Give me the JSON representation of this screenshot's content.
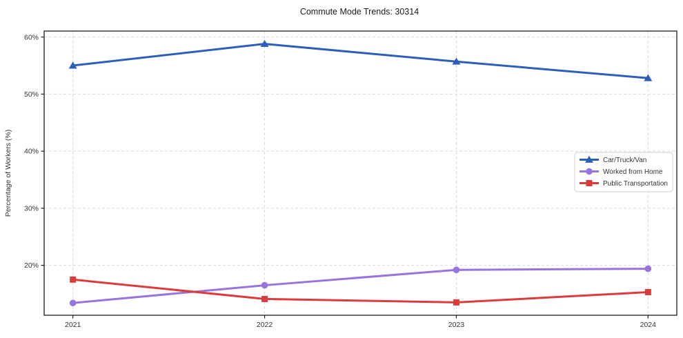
{
  "chart_data": {
    "type": "line",
    "title": "Commute Mode Trends: 30314",
    "xlabel": "",
    "ylabel": "Percentage of Workers (%)",
    "x": [
      2021,
      2022,
      2023,
      2024
    ],
    "x_tick_labels": [
      "2021",
      "2022",
      "2023",
      "2024"
    ],
    "y_ticks": [
      20,
      30,
      40,
      50,
      60
    ],
    "y_tick_labels": [
      "20%",
      "30%",
      "40%",
      "50%",
      "60%"
    ],
    "xlim": [
      2020.85,
      2024.15
    ],
    "ylim": [
      11.25,
      61.05
    ],
    "grid": true,
    "legend_position": "center-right",
    "colors": {
      "background": "#ffffff",
      "axis": "#1a1a1a",
      "grid": "#d9d9d9",
      "tick_text": "#333333",
      "title_text": "#1a1a1a",
      "legend_border": "#cccccc"
    },
    "series": [
      {
        "name": "Car/Truck/Van",
        "color": "#2c5fba",
        "marker": "triangle",
        "values": [
          55.0,
          58.8,
          55.7,
          52.8
        ]
      },
      {
        "name": "Worked from Home",
        "color": "#9874dc",
        "marker": "circle",
        "values": [
          13.4,
          16.5,
          19.2,
          19.4
        ]
      },
      {
        "name": "Public Transportation",
        "color": "#db3b3b",
        "marker": "square",
        "values": [
          17.5,
          14.1,
          13.5,
          15.3
        ]
      }
    ]
  }
}
